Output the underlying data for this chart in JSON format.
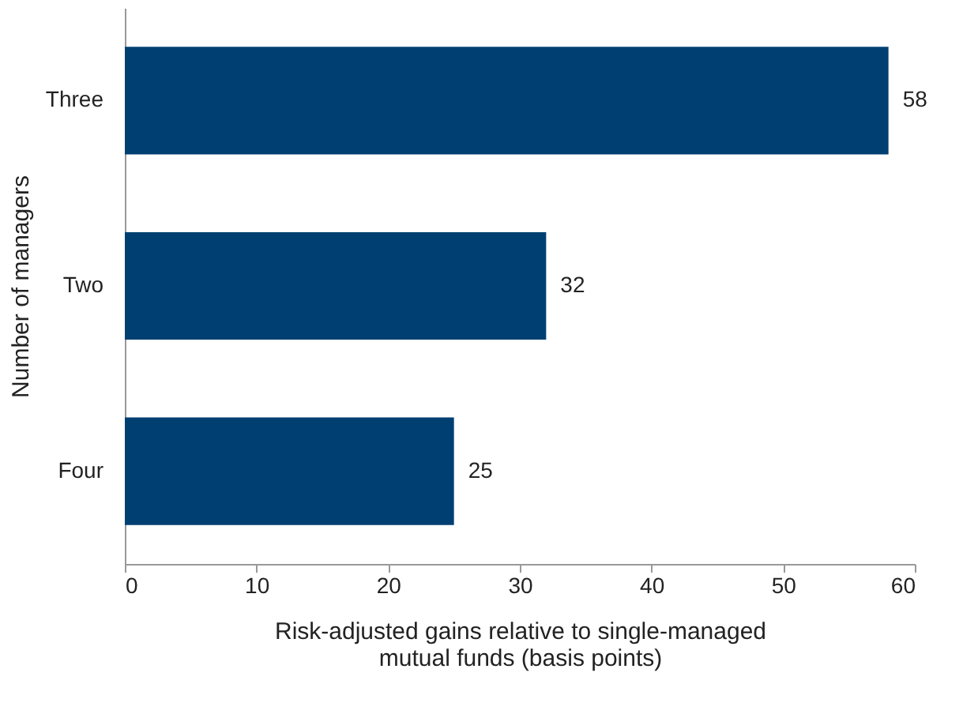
{
  "chart_data": {
    "type": "bar",
    "orientation": "horizontal",
    "categories": [
      "Three",
      "Two",
      "Four"
    ],
    "values": [
      58,
      32,
      25
    ],
    "color": "#003f72",
    "xlim": [
      0,
      60
    ],
    "xticks": [
      0,
      10,
      20,
      30,
      40,
      50,
      60
    ],
    "xlabel": "Risk-adjusted gains relative to single-managed mutual funds (basis points)",
    "ylabel": "Number of managers",
    "data_labels": true,
    "grid": false
  }
}
